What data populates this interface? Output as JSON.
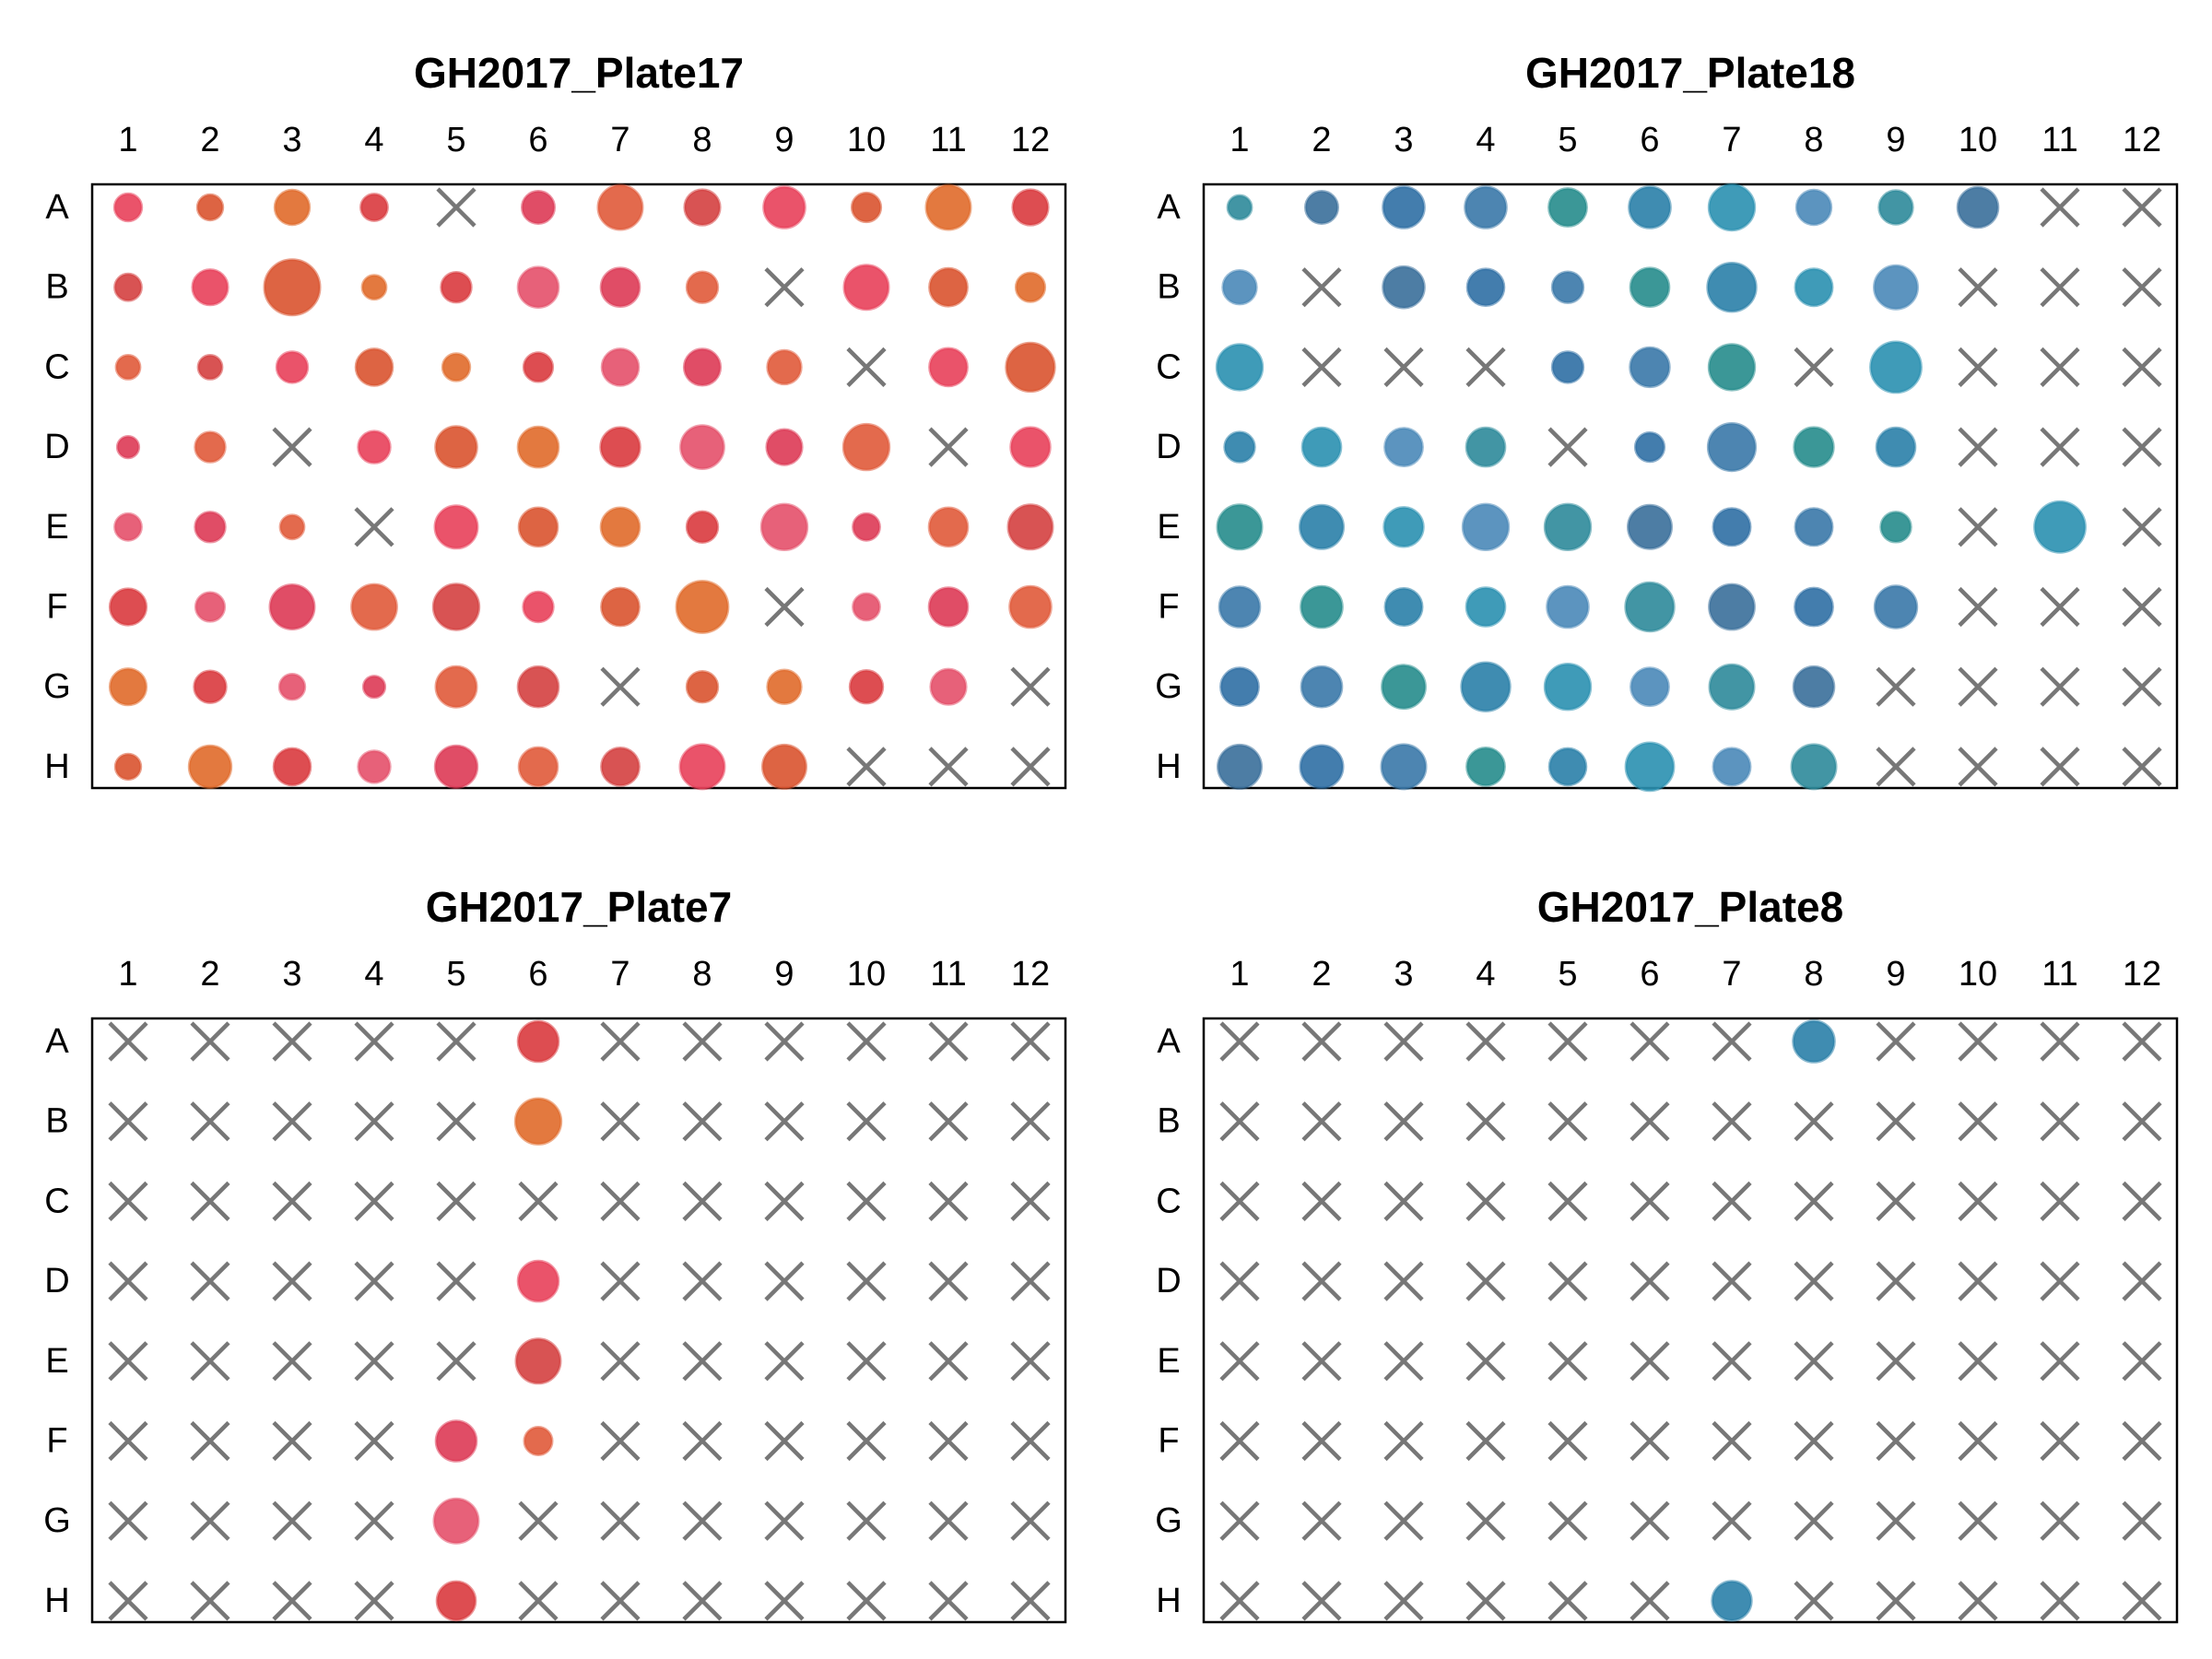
{
  "chart_data": [
    {
      "type": "scatter",
      "subtype": "plate-map",
      "title": "GH2017_Plate17",
      "x_labels": [
        "1",
        "2",
        "3",
        "4",
        "5",
        "6",
        "7",
        "8",
        "9",
        "10",
        "11",
        "12"
      ],
      "y_labels": [
        "A",
        "B",
        "C",
        "D",
        "E",
        "F",
        "G",
        "H"
      ],
      "palette": "red",
      "value_note": "relative well intensity 0-1; null = empty well marked with X",
      "wells": [
        [
          0.15,
          0.12,
          0.3,
          0.14,
          null,
          0.25,
          0.58,
          0.32,
          0.48,
          0.18,
          0.58,
          0.32
        ],
        [
          0.14,
          0.32,
          1.0,
          0.1,
          0.2,
          0.45,
          0.4,
          0.22,
          null,
          0.58,
          0.38,
          0.18
        ],
        [
          0.1,
          0.1,
          0.22,
          0.35,
          0.15,
          0.18,
          0.35,
          0.34,
          0.28,
          null,
          0.38,
          0.72
        ],
        [
          0.07,
          0.2,
          null,
          0.24,
          0.48,
          0.45,
          0.42,
          0.54,
          0.32,
          0.62,
          null,
          0.42
        ],
        [
          0.14,
          0.2,
          0.1,
          null,
          0.52,
          0.4,
          0.4,
          0.22,
          0.62,
          0.14,
          0.4,
          0.58
        ],
        [
          0.34,
          0.18,
          0.58,
          0.6,
          0.62,
          0.2,
          0.38,
          0.84,
          null,
          0.14,
          0.4,
          0.48
        ],
        [
          0.34,
          0.24,
          0.12,
          0.07,
          0.46,
          0.45,
          null,
          0.22,
          0.28,
          0.26,
          0.32,
          null
        ],
        [
          0.12,
          0.5,
          0.35,
          0.24,
          0.5,
          0.4,
          0.38,
          0.58,
          0.55,
          null,
          null,
          null
        ]
      ]
    },
    {
      "type": "scatter",
      "subtype": "plate-map",
      "title": "GH2017_Plate18",
      "x_labels": [
        "1",
        "2",
        "3",
        "4",
        "5",
        "6",
        "7",
        "8",
        "9",
        "10",
        "11",
        "12"
      ],
      "y_labels": [
        "A",
        "B",
        "C",
        "D",
        "E",
        "F",
        "G",
        "H"
      ],
      "palette": "blue",
      "value_note": "relative well intensity 0-1; null = empty well marked with X",
      "wells": [
        [
          0.1,
          0.25,
          0.48,
          0.48,
          0.38,
          0.48,
          0.62,
          0.3,
          0.28,
          0.45,
          null,
          null
        ],
        [
          0.28,
          null,
          0.48,
          0.35,
          0.22,
          0.4,
          0.72,
          0.36,
          0.55,
          null,
          null,
          null
        ],
        [
          0.62,
          null,
          null,
          null,
          0.22,
          0.42,
          0.62,
          null,
          0.8,
          null,
          null,
          null
        ],
        [
          0.2,
          0.4,
          0.38,
          0.4,
          null,
          0.18,
          0.68,
          0.42,
          0.4,
          null,
          null,
          null
        ],
        [
          0.58,
          0.55,
          0.42,
          0.62,
          0.62,
          0.55,
          0.36,
          0.36,
          0.2,
          null,
          0.8,
          null
        ],
        [
          0.45,
          0.48,
          0.36,
          0.4,
          0.48,
          0.72,
          0.6,
          0.38,
          0.5,
          null,
          null,
          null
        ],
        [
          0.38,
          0.45,
          0.54,
          0.72,
          0.62,
          0.38,
          0.58,
          0.45,
          null,
          null,
          null,
          null
        ],
        [
          0.55,
          0.52,
          0.58,
          0.38,
          0.35,
          0.7,
          0.36,
          0.58,
          null,
          null,
          null,
          null
        ]
      ]
    },
    {
      "type": "scatter",
      "subtype": "plate-map",
      "title": "GH2017_Plate7",
      "x_labels": [
        "1",
        "2",
        "3",
        "4",
        "5",
        "6",
        "7",
        "8",
        "9",
        "10",
        "11",
        "12"
      ],
      "y_labels": [
        "A",
        "B",
        "C",
        "D",
        "E",
        "F",
        "G",
        "H"
      ],
      "palette": "red",
      "value_note": "relative well intensity 0-1; null = empty well marked with X",
      "wells": [
        [
          null,
          null,
          null,
          null,
          null,
          0.45,
          null,
          null,
          null,
          null,
          null,
          null
        ],
        [
          null,
          null,
          null,
          null,
          null,
          0.62,
          null,
          null,
          null,
          null,
          null,
          null
        ],
        [
          null,
          null,
          null,
          null,
          null,
          null,
          null,
          null,
          null,
          null,
          null,
          null
        ],
        [
          null,
          null,
          null,
          null,
          null,
          0.45,
          null,
          null,
          null,
          null,
          null,
          null
        ],
        [
          null,
          null,
          null,
          null,
          null,
          0.58,
          null,
          null,
          null,
          null,
          null,
          null
        ],
        [
          null,
          null,
          null,
          null,
          0.45,
          0.16,
          null,
          null,
          null,
          null,
          null,
          null
        ],
        [
          null,
          null,
          null,
          null,
          0.58,
          null,
          null,
          null,
          null,
          null,
          null,
          null
        ],
        [
          null,
          null,
          null,
          null,
          0.4,
          null,
          null,
          null,
          null,
          null,
          null,
          null
        ]
      ]
    },
    {
      "type": "scatter",
      "subtype": "plate-map",
      "title": "GH2017_Plate8",
      "x_labels": [
        "1",
        "2",
        "3",
        "4",
        "5",
        "6",
        "7",
        "8",
        "9",
        "10",
        "11",
        "12"
      ],
      "y_labels": [
        "A",
        "B",
        "C",
        "D",
        "E",
        "F",
        "G",
        "H"
      ],
      "palette": "blue",
      "value_note": "relative well intensity 0-1; null = empty well marked with X",
      "wells": [
        [
          null,
          null,
          null,
          null,
          null,
          null,
          null,
          0.48,
          null,
          null,
          null,
          null
        ],
        [
          null,
          null,
          null,
          null,
          null,
          null,
          null,
          null,
          null,
          null,
          null,
          null
        ],
        [
          null,
          null,
          null,
          null,
          null,
          null,
          null,
          null,
          null,
          null,
          null,
          null
        ],
        [
          null,
          null,
          null,
          null,
          null,
          null,
          null,
          null,
          null,
          null,
          null,
          null
        ],
        [
          null,
          null,
          null,
          null,
          null,
          null,
          null,
          null,
          null,
          null,
          null,
          null
        ],
        [
          null,
          null,
          null,
          null,
          null,
          null,
          null,
          null,
          null,
          null,
          null,
          null
        ],
        [
          null,
          null,
          null,
          null,
          null,
          null,
          null,
          null,
          null,
          null,
          null,
          null
        ],
        [
          null,
          null,
          null,
          null,
          null,
          null,
          0.42,
          null,
          null,
          null,
          null,
          null
        ]
      ]
    }
  ],
  "colors": {
    "red_palette": [
      "#e8405a",
      "#d93a3e",
      "#e05a3a",
      "#d9532f",
      "#e4506a",
      "#d44040",
      "#e06a2a",
      "#dd3a55"
    ],
    "blue_palette": [
      "#2a7fa8",
      "#2e8a9a",
      "#3a78a8",
      "#2a90b0",
      "#3a6f9a",
      "#268c8c",
      "#4a88b8",
      "#2f6fa4"
    ],
    "empty_marker": "#777777",
    "frame": "#000000"
  }
}
